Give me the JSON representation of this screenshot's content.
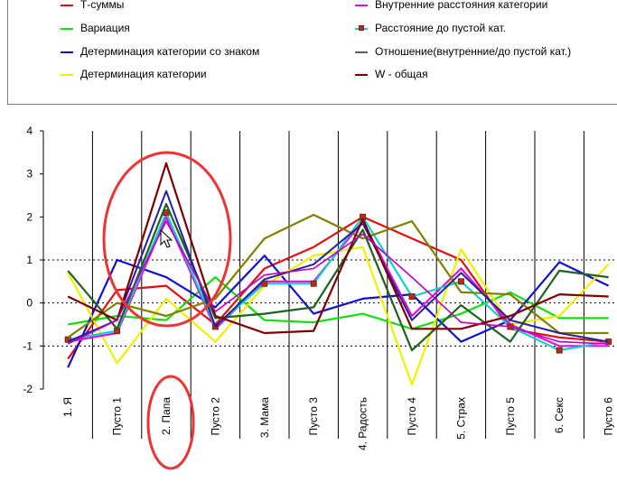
{
  "legend": [
    {
      "name": "Т-суммы",
      "color": "#e01010"
    },
    {
      "name": "Вариация",
      "color": "#10e010"
    },
    {
      "name": "Детерминация категории со знаком",
      "color": "#1010d0"
    },
    {
      "name": "Детерминация категории",
      "color": "#f0f000"
    },
    {
      "name": "Внутренние расстояния категории",
      "color": "#e010e0"
    },
    {
      "name": "Расстояние до пустой кат.",
      "color": "#10d0d0",
      "marker": true
    },
    {
      "name": "Отношение(внутренние/до пустой кат.)",
      "color": "#606060"
    },
    {
      "name": "W - общая",
      "color": "#800000"
    }
  ],
  "chart_data": {
    "type": "line",
    "categories": [
      "1. Я",
      "Пусто 1",
      "2. Папа",
      "Пусто 2",
      "3. Мама",
      "Пусто 3",
      "4. Радость",
      "Пусто 4",
      "5. Страх",
      "Пусто 5",
      "6. Секс",
      "Пусто 6"
    ],
    "y_ticks": [
      "4",
      "3",
      "2",
      "1",
      "0",
      "-1",
      "-2"
    ],
    "ylim": [
      -2,
      4
    ],
    "grid_x": true,
    "dashed_y": [
      1,
      0,
      -1
    ],
    "series": [
      {
        "color": "#e01010",
        "width": 2.2,
        "values": [
          -1.3,
          0.3,
          0.4,
          -0.5,
          0.8,
          1.3,
          2.0,
          1.5,
          1.0,
          -0.6,
          -0.8,
          -0.9
        ]
      },
      {
        "color": "#10e010",
        "width": 2.2,
        "values": [
          -0.5,
          -0.3,
          -0.4,
          0.6,
          -0.4,
          -0.45,
          -0.25,
          -0.6,
          -0.25,
          0.25,
          -0.35,
          -0.35
        ]
      },
      {
        "color": "#1010d0",
        "width": 2.2,
        "values": [
          -1.5,
          1.0,
          0.6,
          -0.1,
          1.1,
          -0.25,
          0.1,
          0.2,
          -0.9,
          -0.4,
          0.95,
          0.4
        ]
      },
      {
        "color": "#f0f000",
        "width": 2.2,
        "values": [
          0.7,
          -1.4,
          0.1,
          -0.9,
          0.4,
          1.1,
          1.3,
          -1.9,
          1.25,
          -0.5,
          -0.3,
          0.9
        ]
      },
      {
        "color": "#e010e0",
        "width": 2.2,
        "values": [
          -0.9,
          -0.7,
          2.0,
          -0.6,
          0.5,
          0.5,
          1.9,
          -0.3,
          0.8,
          -0.5,
          -1.0,
          -1.0
        ]
      },
      {
        "color": "#10d0d0",
        "width": 2.2,
        "marker": true,
        "values": [
          -0.85,
          -0.65,
          2.1,
          -0.55,
          0.45,
          0.45,
          2.0,
          0.15,
          0.5,
          -0.55,
          -1.1,
          -0.9
        ]
      },
      {
        "color": "#808000",
        "width": 2.2,
        "values": [
          -0.8,
          0.0,
          -0.3,
          0.1,
          1.5,
          2.05,
          1.5,
          1.9,
          0.25,
          0.2,
          -0.7,
          -0.7
        ]
      },
      {
        "color": "#206020",
        "width": 2.2,
        "values": [
          0.75,
          -0.6,
          2.3,
          -0.35,
          -0.25,
          -0.1,
          1.7,
          -1.1,
          -0.05,
          -0.9,
          0.75,
          0.6
        ]
      },
      {
        "color": "#2020a0",
        "width": 2.0,
        "values": [
          -0.9,
          -0.4,
          2.6,
          -0.55,
          0.55,
          0.9,
          1.85,
          -0.4,
          0.7,
          -0.4,
          -0.7,
          -0.9
        ]
      },
      {
        "color": "#800000",
        "width": 2.2,
        "values": [
          0.15,
          -0.4,
          3.25,
          -0.3,
          -0.7,
          -0.65,
          1.95,
          -0.6,
          -0.6,
          -0.3,
          0.2,
          0.15
        ]
      },
      {
        "color": "#c000c0",
        "width": 1.6,
        "values": [
          -0.95,
          -0.4,
          1.9,
          -0.2,
          0.65,
          0.8,
          1.6,
          0.6,
          -0.45,
          -0.55,
          -0.9,
          -0.95
        ]
      }
    ]
  },
  "annotations": [
    "ellipse-around-papa-peak",
    "ellipse-around-papa-label",
    "mouse-cursor"
  ]
}
